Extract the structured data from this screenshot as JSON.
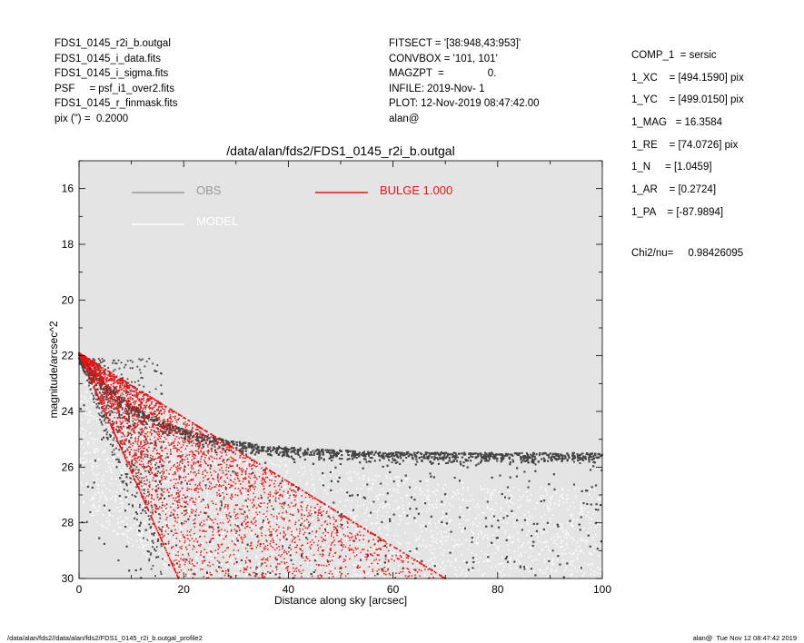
{
  "header_left": [
    "FDS1_0145_r2i_b.outgal",
    "FDS1_0145_i_data.fits",
    "FDS1_0145_i_sigma.fits",
    "PSF     = psf_i1_over2.fits",
    "FDS1_0145_r_finmask.fits",
    "pix (\") =  0.2000"
  ],
  "header_mid": [
    "FITSECT = '[38:948,43:953]'",
    "CONVBOX = '101, 101'",
    "MAGZPT  =               0.",
    "INFILE: 2019-Nov- 1",
    "PLOT: 12-Nov-2019 08:47:42.00",
    "alan@"
  ],
  "header_right": [
    "COMP_1  = sersic",
    "1_XC    = [494.1590] pix",
    "1_YC    = [499.0150] pix",
    "1_MAG   = 16.3584",
    "1_RE    = [74.0726] pix",
    "1_N     = [1.0459]",
    "1_AR    = [0.2724]",
    "1_PA    = [-87.9894]"
  ],
  "chi2": "Chi2/nu=     0.98426095",
  "footer_left": "/data/alan/fds2//data/alan/fds2/FDS1_0145_r2i_b.outgal_profile2",
  "footer_right": "alan@  Tue Nov 12 08:47:42 2019",
  "colors": {
    "plot_bg": "#e4e4e4",
    "obs": "#444444",
    "model": "#ffffff",
    "bulge": "#ee1111",
    "legend_obs": "#999999"
  },
  "chart_data": {
    "type": "scatter",
    "title": "/data/alan/fds2/FDS1_0145_r2i_b.outgal",
    "xlabel": "Distance along sky [arcsec]",
    "ylabel": "magnitude/arcsec^2",
    "xlim": [
      0,
      100
    ],
    "ylim": [
      30,
      15
    ],
    "x_ticks": [
      "0",
      "20",
      "40",
      "60",
      "80",
      "100"
    ],
    "y_ticks": [
      "16",
      "18",
      "20",
      "22",
      "24",
      "26",
      "28",
      "30"
    ],
    "legend": {
      "obs": "OBS",
      "model": "MODEL",
      "bulge": "BULGE  1.000"
    },
    "series": [
      {
        "name": "OBS",
        "description": "noisy profile: mu~22 at r=0, upper envelope flattening to ~25 at large r",
        "points_upper": [
          [
            0,
            21.9
          ],
          [
            5,
            22.5
          ],
          [
            10,
            23.3
          ],
          [
            15,
            24.0
          ],
          [
            20,
            24.5
          ],
          [
            30,
            25.0
          ],
          [
            40,
            25.2
          ],
          [
            60,
            25.3
          ],
          [
            100,
            25.5
          ]
        ]
      },
      {
        "name": "MODEL",
        "points_upper": [
          [
            0,
            22.0
          ],
          [
            20,
            24.6
          ],
          [
            40,
            25.8
          ],
          [
            60,
            26.4
          ],
          [
            100,
            27.0
          ]
        ]
      },
      {
        "name": "BULGE  1.000",
        "upper_edge": [
          [
            0,
            21.9
          ],
          [
            70,
            30
          ]
        ],
        "lower_edge": [
          [
            0,
            21.9
          ],
          [
            19,
            30
          ]
        ]
      }
    ]
  }
}
